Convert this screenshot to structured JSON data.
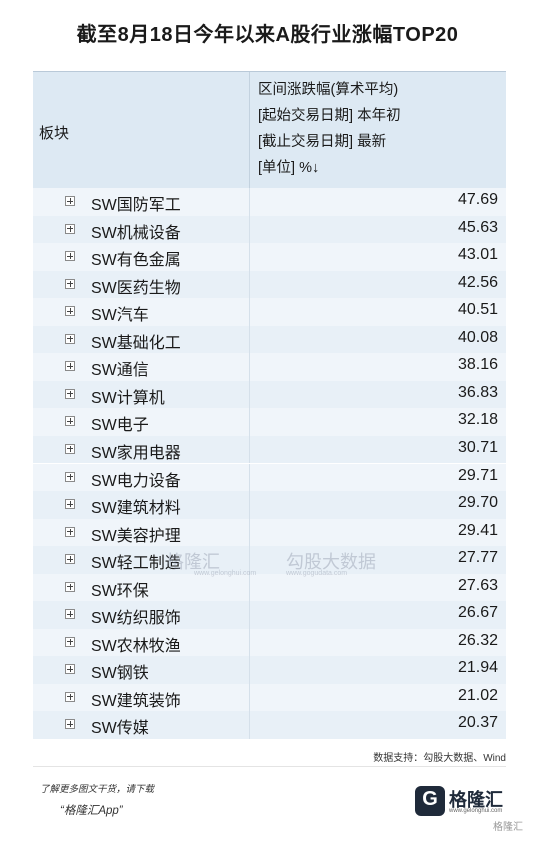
{
  "title": "截至8月18日今年以来A股行业涨幅TOP20",
  "header": {
    "col1": "板块",
    "col2_lines": [
      "区间涨跌幅(算术平均)",
      "[起始交易日期] 本年初",
      "[截止交易日期] 最新",
      "[单位] %↓"
    ]
  },
  "rows": [
    {
      "name": "SW国防军工",
      "value": "47.69"
    },
    {
      "name": "SW机械设备",
      "value": "45.63"
    },
    {
      "name": "SW有色金属",
      "value": "43.01"
    },
    {
      "name": "SW医药生物",
      "value": "42.56"
    },
    {
      "name": "SW汽车",
      "value": "40.51"
    },
    {
      "name": "SW基础化工",
      "value": "40.08"
    },
    {
      "name": "SW通信",
      "value": "38.16"
    },
    {
      "name": "SW计算机",
      "value": "36.83"
    },
    {
      "name": "SW电子",
      "value": "32.18"
    },
    {
      "name": "SW家用电器",
      "value": "30.71"
    },
    {
      "name": "SW电力设备",
      "value": "29.71"
    },
    {
      "name": "SW建筑材料",
      "value": "29.70"
    },
    {
      "name": "SW美容护理",
      "value": "29.41"
    },
    {
      "name": "SW轻工制造",
      "value": "27.77"
    },
    {
      "name": "SW环保",
      "value": "27.63"
    },
    {
      "name": "SW纺织服饰",
      "value": "26.67"
    },
    {
      "name": "SW农林牧渔",
      "value": "26.32"
    },
    {
      "name": "SW钢铁",
      "value": "21.94"
    },
    {
      "name": "SW建筑装饰",
      "value": "21.02"
    },
    {
      "name": "SW传媒",
      "value": "20.37"
    }
  ],
  "source": "数据支持：勾股大数据、Wind",
  "promo": {
    "line1": "了解更多图文干货，请下载",
    "line2": "“格隆汇App”"
  },
  "brand": {
    "name": "格隆汇",
    "sub": "www.gelonghui.com"
  },
  "watermark": {
    "left": "格隆汇",
    "left_sub": "www.gelonghui.com",
    "right": "勾股大数据",
    "right_sub": "www.gogudata.com"
  },
  "corner_mark": "格隆汇"
}
